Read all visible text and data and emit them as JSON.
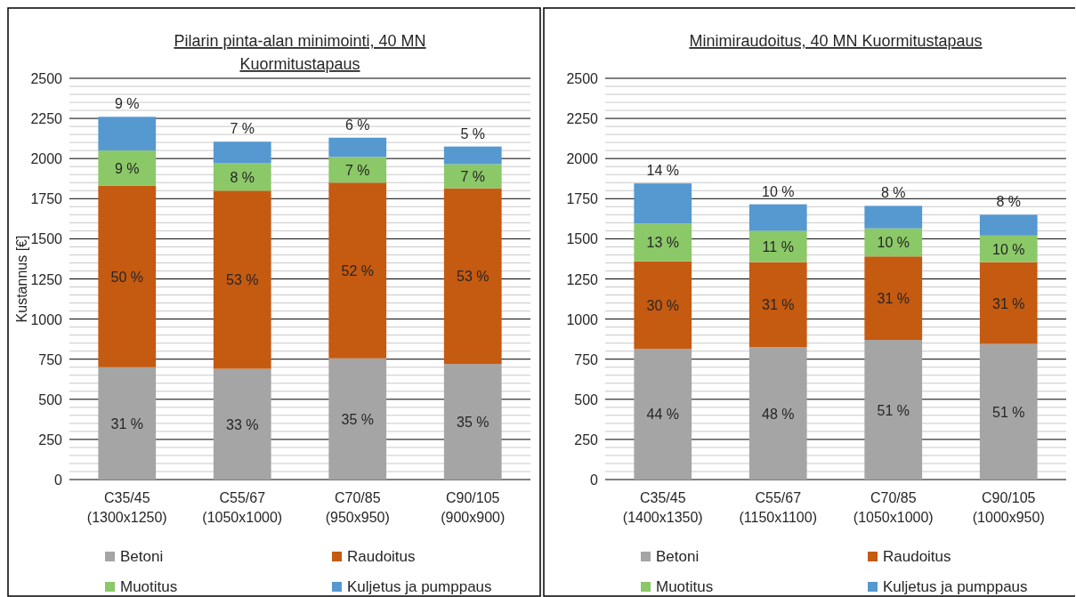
{
  "chart_data": [
    {
      "type": "bar",
      "title": "Pilarin pinta-alan minimointi, 40 MN Kuormitustapaus",
      "ylabel": "Kustannus [€]",
      "stacked": true,
      "grid": "y",
      "legend": "bottom",
      "categories": [
        "C35/45\n(1300x1250)",
        "C55/67\n(1050x1000)",
        "C70/85\n(950x950)",
        "C90/105\n(900x900)"
      ],
      "ylim": [
        0,
        2500
      ],
      "yticks": [
        0,
        250,
        500,
        750,
        1000,
        1250,
        1500,
        1750,
        2000,
        2250,
        2500
      ],
      "series": [
        {
          "name": "Betoni",
          "color": "#a5a5a5",
          "values": [
            700,
            690,
            755,
            720
          ]
        },
        {
          "name": "Raudoitus",
          "color": "#c55a11",
          "values": [
            1130,
            1110,
            1095,
            1095
          ]
        },
        {
          "name": "Muotitus",
          "color": "#8bc867",
          "values": [
            220,
            170,
            160,
            150
          ]
        },
        {
          "name": "Kuljetus ja pumppaus",
          "color": "#5599d0",
          "values": [
            210,
            135,
            120,
            110
          ]
        }
      ],
      "annotations": [
        "31 %",
        "50 %",
        "9 %",
        "9 %",
        "33 %",
        "53 %",
        "8 %",
        "7 %",
        "35 %",
        "52 %",
        "7 %",
        "6 %",
        "35 %",
        "53 %",
        "7 %",
        "5 %"
      ]
    },
    {
      "type": "bar",
      "title": "Minimiraudoitus, 40 MN Kuormitustapaus",
      "stacked": true,
      "grid": "y",
      "legend": "bottom",
      "categories": [
        "C35/45\n(1400x1350)",
        "C55/67\n(1150x1100)",
        "C70/85\n(1050x1000)",
        "C90/105\n(1000x950)"
      ],
      "ylim": [
        0,
        2500
      ],
      "yticks": [
        0,
        250,
        500,
        750,
        1000,
        1250,
        1500,
        1750,
        2000,
        2250,
        2500
      ],
      "series": [
        {
          "name": "Betoni",
          "color": "#a5a5a5",
          "values": [
            815,
            825,
            870,
            845
          ]
        },
        {
          "name": "Raudoitus",
          "color": "#c55a11",
          "values": [
            545,
            530,
            520,
            510
          ]
        },
        {
          "name": "Muotitus",
          "color": "#8bc867",
          "values": [
            235,
            195,
            175,
            165
          ]
        },
        {
          "name": "Kuljetus ja pumppaus",
          "color": "#5599d0",
          "values": [
            250,
            165,
            140,
            130
          ]
        }
      ],
      "annotations": [
        "44 %",
        "30 %",
        "13 %",
        "14 %",
        "48 %",
        "31 %",
        "11 %",
        "10 %",
        "51 %",
        "31 %",
        "10 %",
        "8 %",
        "51 %",
        "31 %",
        "10 %",
        "8 %"
      ]
    }
  ]
}
